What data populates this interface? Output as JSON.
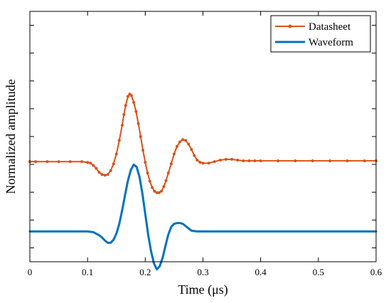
{
  "chart_data": {
    "type": "line",
    "xlabel": "Time (μs)",
    "ylabel": "Normalized amplitude",
    "xlim": [
      0,
      0.6
    ],
    "ylim": [
      -1.3,
      2.0
    ],
    "grid": false,
    "legend_position": "top-right",
    "x_ticks": [
      "0",
      "0.1",
      "0.2",
      "0.3",
      "0.4",
      "0.5",
      "0.6"
    ],
    "series": [
      {
        "name": "Datasheet",
        "color": "#D95319",
        "marker": "dot",
        "x": [
          0,
          0.01,
          0.03,
          0.05,
          0.07,
          0.09,
          0.1,
          0.105,
          0.11,
          0.115,
          0.12,
          0.125,
          0.13,
          0.135,
          0.14,
          0.145,
          0.15,
          0.155,
          0.16,
          0.163,
          0.166,
          0.17,
          0.173,
          0.176,
          0.18,
          0.184,
          0.188,
          0.192,
          0.196,
          0.2,
          0.204,
          0.208,
          0.212,
          0.216,
          0.22,
          0.224,
          0.228,
          0.232,
          0.236,
          0.24,
          0.245,
          0.25,
          0.255,
          0.26,
          0.265,
          0.27,
          0.275,
          0.28,
          0.285,
          0.29,
          0.295,
          0.3,
          0.31,
          0.32,
          0.33,
          0.34,
          0.35,
          0.36,
          0.37,
          0.38,
          0.39,
          0.4,
          0.43,
          0.46,
          0.49,
          0.52,
          0.55,
          0.58,
          0.6
        ],
        "y": [
          0.02,
          0.02,
          0.02,
          0.02,
          0.02,
          0.02,
          0.01,
          0.0,
          -0.03,
          -0.07,
          -0.12,
          -0.15,
          -0.16,
          -0.15,
          -0.1,
          -0.01,
          0.12,
          0.3,
          0.5,
          0.64,
          0.76,
          0.88,
          0.91,
          0.89,
          0.8,
          0.68,
          0.52,
          0.35,
          0.17,
          0.01,
          -0.13,
          -0.24,
          -0.32,
          -0.37,
          -0.39,
          -0.39,
          -0.37,
          -0.31,
          -0.23,
          -0.13,
          -0.01,
          0.12,
          0.22,
          0.28,
          0.31,
          0.3,
          0.25,
          0.18,
          0.1,
          0.04,
          0.01,
          0.0,
          0.0,
          0.02,
          0.04,
          0.05,
          0.05,
          0.04,
          0.03,
          0.03,
          0.03,
          0.03,
          0.03,
          0.03,
          0.03,
          0.03,
          0.03,
          0.03,
          0.03
        ]
      },
      {
        "name": "Waveform",
        "color": "#0072BD",
        "marker": "none",
        "x": [
          0,
          0.05,
          0.09,
          0.1,
          0.11,
          0.12,
          0.125,
          0.13,
          0.135,
          0.14,
          0.145,
          0.15,
          0.155,
          0.16,
          0.165,
          0.17,
          0.175,
          0.18,
          0.185,
          0.19,
          0.195,
          0.2,
          0.205,
          0.21,
          0.215,
          0.22,
          0.225,
          0.23,
          0.235,
          0.24,
          0.245,
          0.25,
          0.255,
          0.26,
          0.265,
          0.27,
          0.275,
          0.28,
          0.29,
          0.3,
          0.35,
          0.4,
          0.45,
          0.5,
          0.55,
          0.6
        ],
        "y": [
          -0.9,
          -0.9,
          -0.9,
          -0.9,
          -0.91,
          -0.95,
          -0.98,
          -1.02,
          -1.05,
          -1.05,
          -1.01,
          -0.93,
          -0.8,
          -0.62,
          -0.42,
          -0.23,
          -0.09,
          -0.02,
          -0.05,
          -0.18,
          -0.4,
          -0.67,
          -0.94,
          -1.16,
          -1.32,
          -1.4,
          -1.36,
          -1.25,
          -1.09,
          -0.94,
          -0.84,
          -0.8,
          -0.79,
          -0.79,
          -0.8,
          -0.83,
          -0.86,
          -0.89,
          -0.9,
          -0.9,
          -0.9,
          -0.9,
          -0.9,
          -0.9,
          -0.9,
          -0.9
        ]
      }
    ]
  }
}
